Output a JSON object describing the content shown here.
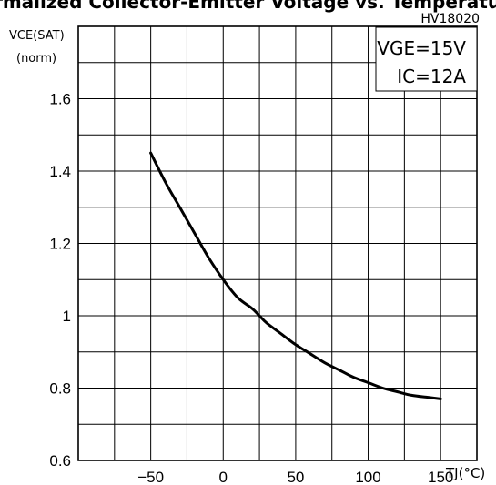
{
  "title": "Normalized Collector-Emitter Voltage vs. Temperature",
  "figure_code": "HV18020",
  "chart_data": {
    "type": "line",
    "title": "Normalized Collector-Emitter Voltage vs. Temperature",
    "xlabel": "TJ(°C)",
    "ylabel": "VCE(SAT) (norm)",
    "ylabel_line1": "VCE(SAT)",
    "ylabel_line2": "(norm)",
    "xlim": [
      -100,
      175
    ],
    "ylim": [
      0.6,
      1.8
    ],
    "x_ticks": [
      -50,
      0,
      50,
      100,
      150
    ],
    "x_tick_labels": [
      "−50",
      "0",
      "50",
      "100",
      "150"
    ],
    "y_ticks": [
      0.6,
      0.8,
      1,
      1.2,
      1.4,
      1.6
    ],
    "y_tick_labels": [
      "0.6",
      "0.8",
      "1",
      "1.2",
      "1.4",
      "1.6"
    ],
    "grid": true,
    "annotations": [
      "VGE=15V",
      "IC=12A"
    ],
    "series": [
      {
        "x": [
          -50,
          -40,
          -30,
          -20,
          -10,
          0,
          10,
          20,
          25,
          30,
          40,
          50,
          60,
          70,
          80,
          90,
          100,
          110,
          120,
          130,
          140,
          150
        ],
        "values": [
          1.45,
          1.37,
          1.3,
          1.23,
          1.16,
          1.1,
          1.05,
          1.02,
          1.0,
          0.98,
          0.95,
          0.92,
          0.895,
          0.87,
          0.85,
          0.83,
          0.815,
          0.8,
          0.79,
          0.78,
          0.775,
          0.77
        ]
      }
    ]
  }
}
